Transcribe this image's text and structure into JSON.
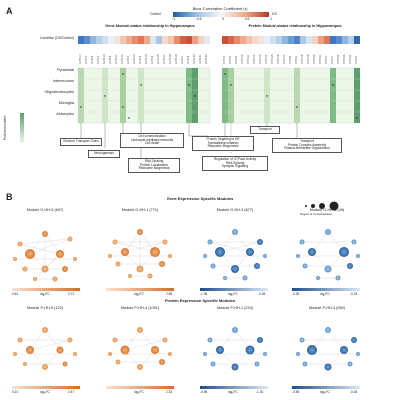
{
  "panelA": {
    "label": "A",
    "scale_title": "Bicor Correlation Coefficient (r)",
    "scale_left_label": "Control",
    "scale_right_label": "DS",
    "scale_ticks": [
      "-1",
      "-0.5",
      "0",
      "0.5",
      "1"
    ],
    "condition_label": "Condition (DS/Control)",
    "gene_title": "Gene Module-status relationship in Hippocampus",
    "protein_title": "Protein Module-status relationship in Hippocampus",
    "row_labels": [
      "Pyramidal",
      "Interneurons",
      "Oligodendrocytes",
      "Microglia",
      "Astrocytes"
    ],
    "y_axis_label": "Fold enrichment",
    "callouts": [
      "Electron Transport Chain",
      "Neurogenesis",
      "Cell communication\nLeukocyte mediated immunity\nCell death",
      "RNA Splicing\nProtein Localization\nRibosome Biogenesis",
      "Protein Targeting to ER\nTranslational Initiation\nRibosome Biogenesis",
      "Regulation of GTPase Activity\nRNA Splicing\nSynaptic Signaling",
      "Transport",
      "Transport\nProtein Complex Assembly\nPlasma Membrane Organization"
    ],
    "colors": {
      "strong_blue": "#2b6cb0",
      "light_blue": "#9ec3e6",
      "white": "#f7f7f7",
      "light_red": "#f1a98a",
      "strong_red": "#c0392b",
      "green_dark": "#5e9e6e",
      "green_light": "#cfe6c5"
    }
  },
  "panelB": {
    "label": "B",
    "gene_section_title": "Gene Expression Specific Modules",
    "protein_section_title": "Protein Expression Specific Modules",
    "legend_label": "Degree of connectedness",
    "axis_label": "log₂FC",
    "gene_modules": [
      {
        "title": "Module G-HH-5 (607)",
        "min": "0.61",
        "max": "2.71",
        "max2": "0.38",
        "palette": "warm"
      },
      {
        "title": "Module G-HH-1 (771)",
        "min": "",
        "max": "2.96",
        "max2": "",
        "palette": "warm"
      },
      {
        "title": "Module G-HH-3 (677)",
        "min": "-1.96",
        "max": "-0.45",
        "max2": "",
        "palette": "cool"
      },
      {
        "title": "Module G-HH-5 (49)",
        "min": "-0.35",
        "max": "-0.23",
        "max2": "",
        "palette": "cool"
      }
    ],
    "protein_modules": [
      {
        "title": "Module P-HH-5 (120)",
        "min": "0.21",
        "max": "2.47",
        "max2": "0.62",
        "palette": "warm"
      },
      {
        "title": "Module P-HH-4 (1091)",
        "min": "",
        "max": "2.32",
        "max2": "",
        "palette": "warm"
      },
      {
        "title": "Module P-HH-1 (234)",
        "min": "-0.56",
        "max": "-1.30",
        "max2": "",
        "palette": "cool"
      },
      {
        "title": "Module P-HH-3 (950)",
        "min": "-0.55",
        "max": "-0.45",
        "max2": "",
        "palette": "cool"
      }
    ]
  }
}
